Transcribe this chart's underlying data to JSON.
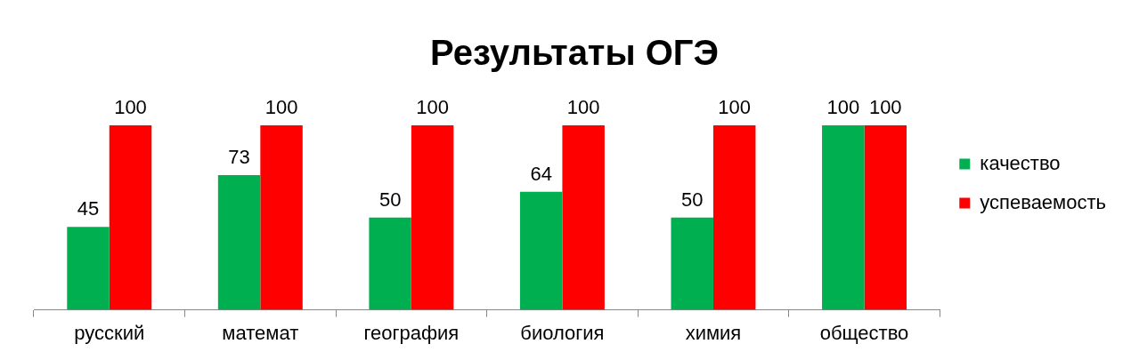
{
  "chart_data": {
    "type": "bar",
    "title": "Результаты ОГЭ",
    "categories": [
      "русский",
      "математ",
      "география",
      "биология",
      "химия",
      "общество"
    ],
    "series": [
      {
        "name": "качество",
        "color": "#00b050",
        "values": [
          45,
          73,
          50,
          64,
          50,
          100
        ]
      },
      {
        "name": "успеваемость",
        "color": "#ff0000",
        "values": [
          100,
          100,
          100,
          100,
          100,
          100
        ]
      }
    ],
    "ylim": [
      0,
      100
    ],
    "tick_labels": "x",
    "data_labels": true,
    "legend": "right",
    "grid": false
  }
}
